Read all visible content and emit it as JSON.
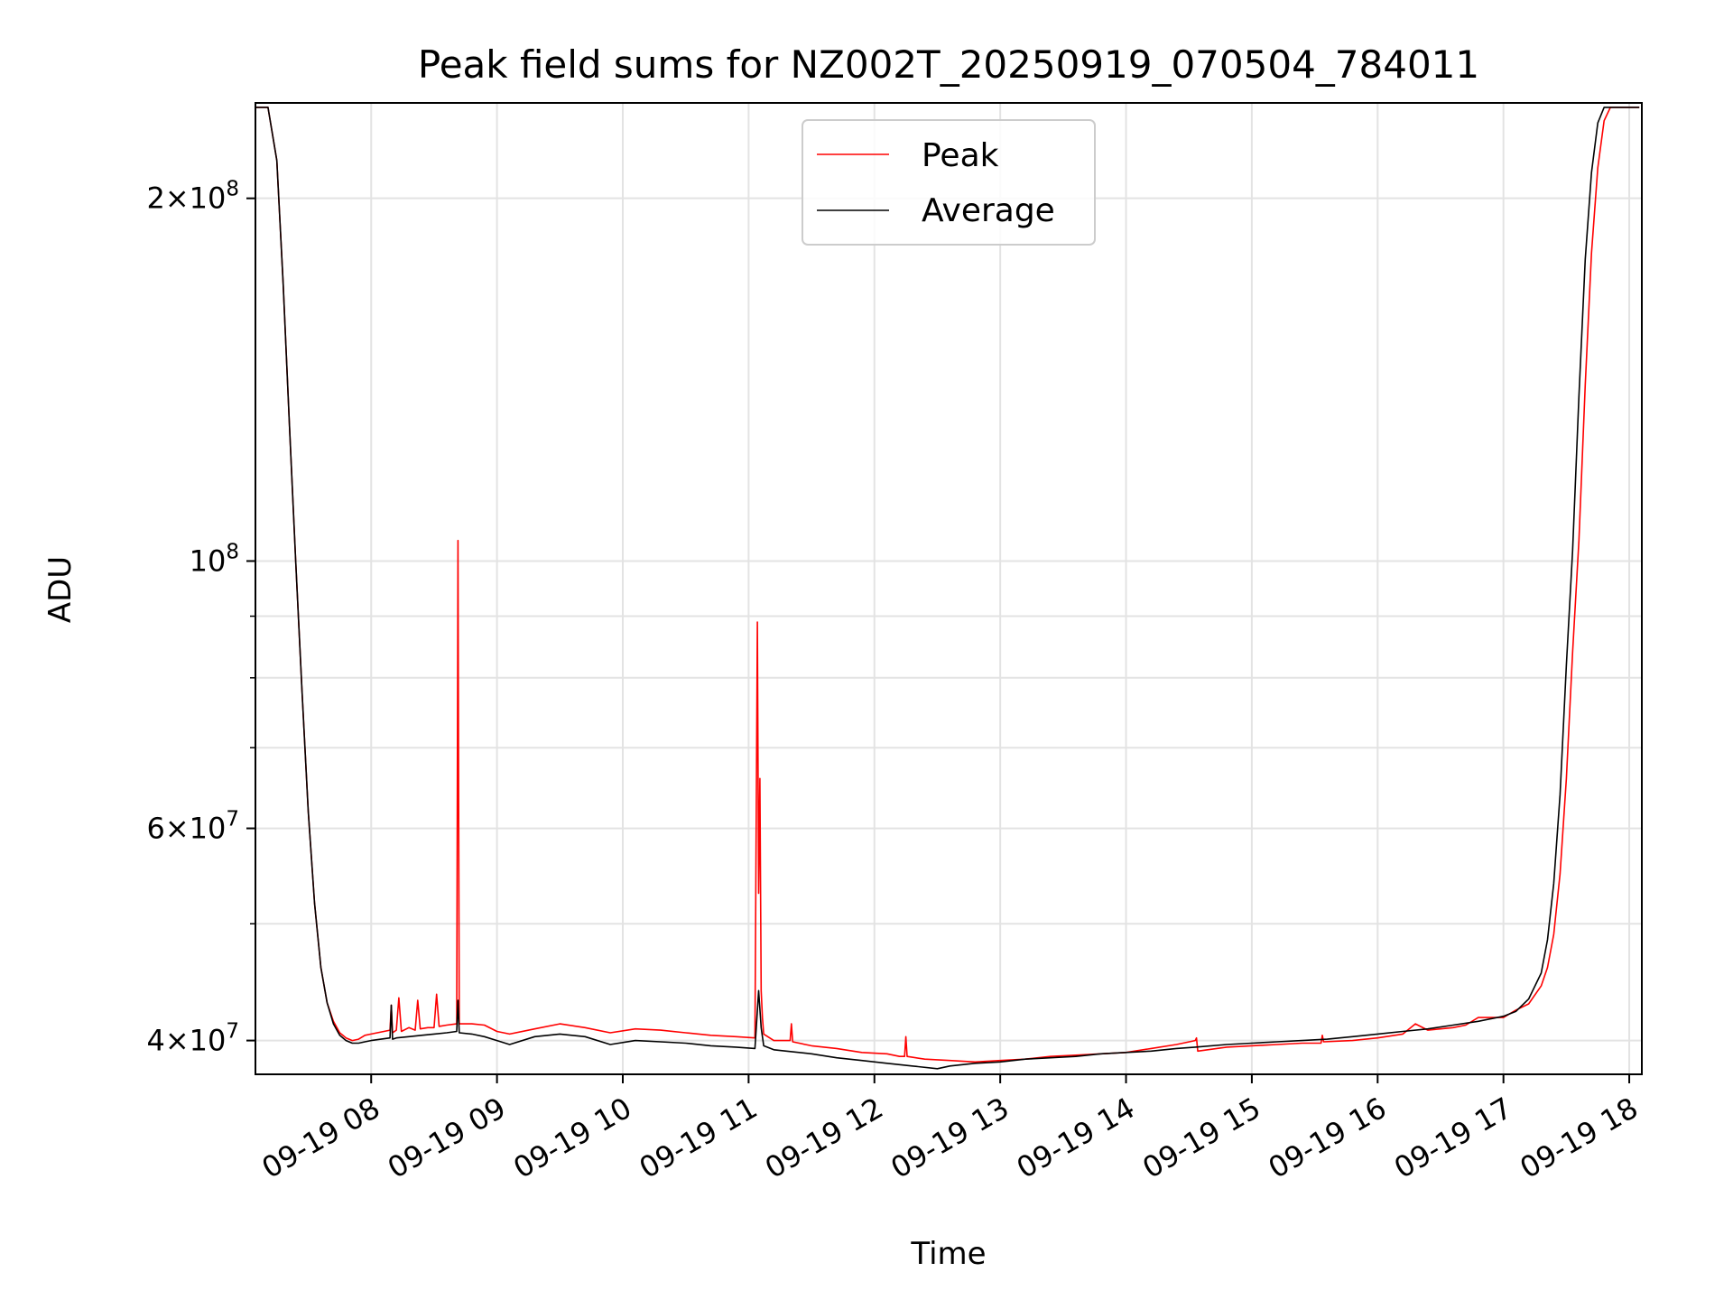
{
  "chart_data": {
    "type": "line",
    "title": "Peak field sums for NZ002T_20250919_070504_784011",
    "xlabel": "Time",
    "ylabel": "ADU",
    "yscale": "log",
    "ylim": [
      37500000,
      240000000
    ],
    "xlim_hours": [
      7.08,
      18.1
    ],
    "x_tick_hours": [
      8,
      9,
      10,
      11,
      12,
      13,
      14,
      15,
      16,
      17,
      18
    ],
    "x_tick_labels": [
      "09-19 08",
      "09-19 09",
      "09-19 10",
      "09-19 11",
      "09-19 12",
      "09-19 13",
      "09-19 14",
      "09-19 15",
      "09-19 16",
      "09-19 17",
      "09-19 18"
    ],
    "y_major_ticks": [
      {
        "value": 40000000,
        "mantissa": "4",
        "exp": "7"
      },
      {
        "value": 60000000,
        "mantissa": "6",
        "exp": "7"
      },
      {
        "value": 100000000,
        "mantissa": "",
        "exp": "8"
      },
      {
        "value": 200000000,
        "mantissa": "2",
        "exp": "8"
      }
    ],
    "y_minor_ticks": [
      50000000,
      70000000,
      80000000,
      90000000
    ],
    "grid": true,
    "legend_position": "top-center",
    "series": [
      {
        "name": "Peak",
        "color": "#ff0000",
        "x_hours": [
          7.08,
          7.18,
          7.25,
          7.3,
          7.35,
          7.4,
          7.45,
          7.5,
          7.55,
          7.6,
          7.65,
          7.7,
          7.75,
          7.8,
          7.85,
          7.9,
          7.95,
          8.0,
          8.15,
          8.16,
          8.17,
          8.2,
          8.22,
          8.24,
          8.3,
          8.35,
          8.37,
          8.39,
          8.45,
          8.5,
          8.52,
          8.54,
          8.6,
          8.68,
          8.69,
          8.7,
          8.8,
          8.9,
          9.0,
          9.1,
          9.3,
          9.5,
          9.7,
          9.9,
          10.1,
          10.3,
          10.5,
          10.7,
          10.9,
          11.05,
          11.07,
          11.08,
          11.09,
          11.1,
          11.11,
          11.12,
          11.2,
          11.3,
          11.33,
          11.34,
          11.35,
          11.5,
          11.7,
          11.9,
          12.1,
          12.2,
          12.24,
          12.25,
          12.26,
          12.4,
          12.6,
          12.8,
          13.0,
          13.2,
          13.4,
          13.6,
          13.8,
          14.0,
          14.2,
          14.4,
          14.55,
          14.56,
          14.57,
          14.8,
          15.0,
          15.2,
          15.4,
          15.55,
          15.56,
          15.57,
          15.8,
          16.0,
          16.2,
          16.3,
          16.4,
          16.6,
          16.7,
          16.8,
          17.0,
          17.1,
          17.2,
          17.3,
          17.35,
          17.4,
          17.45,
          17.5,
          17.55,
          17.6,
          17.65,
          17.7,
          17.75,
          17.8,
          17.85,
          17.9,
          18.08
        ],
        "values": [
          238000000,
          238000000,
          215000000,
          170000000,
          130000000,
          100000000,
          78000000,
          62000000,
          52000000,
          46000000,
          43000000,
          41500000,
          40600000,
          40200000,
          40000000,
          40100000,
          40400000,
          40500000,
          40800000,
          42800000,
          40600000,
          40800000,
          43400000,
          40700000,
          41000000,
          40800000,
          43200000,
          40900000,
          41000000,
          41000000,
          43700000,
          41100000,
          41200000,
          41300000,
          104000000,
          41300000,
          41300000,
          41200000,
          40700000,
          40500000,
          40900000,
          41300000,
          41000000,
          40600000,
          40900000,
          40800000,
          40600000,
          40400000,
          40300000,
          40200000,
          89000000,
          53000000,
          66000000,
          44000000,
          41800000,
          40500000,
          40000000,
          40000000,
          40000000,
          41300000,
          39900000,
          39600000,
          39400000,
          39100000,
          39000000,
          38800000,
          38800000,
          40300000,
          38800000,
          38600000,
          38500000,
          38400000,
          38500000,
          38600000,
          38800000,
          38900000,
          39000000,
          39100000,
          39400000,
          39700000,
          40000000,
          40200000,
          39200000,
          39500000,
          39600000,
          39700000,
          39800000,
          39800000,
          40400000,
          39900000,
          40000000,
          40200000,
          40500000,
          41300000,
          40800000,
          41000000,
          41200000,
          41800000,
          41800000,
          42400000,
          42900000,
          44400000,
          46000000,
          49000000,
          55000000,
          66000000,
          84000000,
          104000000,
          140000000,
          180000000,
          212000000,
          232000000,
          238000000,
          238000000,
          238000000
        ]
      },
      {
        "name": "Average",
        "color": "#000000",
        "x_hours": [
          7.08,
          7.18,
          7.25,
          7.3,
          7.35,
          7.4,
          7.45,
          7.5,
          7.55,
          7.6,
          7.65,
          7.7,
          7.75,
          7.8,
          7.85,
          7.9,
          7.95,
          8.0,
          8.15,
          8.16,
          8.17,
          8.2,
          8.3,
          8.4,
          8.5,
          8.6,
          8.68,
          8.69,
          8.7,
          8.8,
          8.9,
          9.0,
          9.1,
          9.3,
          9.5,
          9.7,
          9.9,
          10.1,
          10.3,
          10.5,
          10.7,
          10.9,
          11.05,
          11.08,
          11.1,
          11.12,
          11.2,
          11.3,
          11.5,
          11.7,
          11.9,
          12.1,
          12.3,
          12.5,
          12.6,
          12.8,
          13.0,
          13.2,
          13.4,
          13.6,
          13.8,
          14.0,
          14.2,
          14.4,
          14.55,
          14.8,
          15.0,
          15.2,
          15.4,
          15.6,
          15.8,
          16.0,
          16.2,
          16.4,
          16.6,
          16.8,
          17.0,
          17.1,
          17.2,
          17.3,
          17.35,
          17.4,
          17.45,
          17.5,
          17.55,
          17.6,
          17.65,
          17.7,
          17.75,
          17.8,
          17.85,
          17.9,
          18.08
        ],
        "values": [
          238000000,
          238000000,
          215000000,
          170000000,
          130000000,
          100000000,
          78000000,
          62000000,
          52000000,
          46000000,
          43000000,
          41300000,
          40400000,
          40000000,
          39800000,
          39800000,
          39900000,
          40000000,
          40200000,
          42800000,
          40100000,
          40200000,
          40300000,
          40400000,
          40500000,
          40600000,
          40700000,
          43200000,
          40600000,
          40500000,
          40300000,
          40000000,
          39700000,
          40300000,
          40500000,
          40300000,
          39700000,
          40000000,
          39900000,
          39800000,
          39600000,
          39500000,
          39400000,
          44000000,
          41000000,
          39600000,
          39300000,
          39200000,
          39000000,
          38700000,
          38500000,
          38300000,
          38100000,
          37900000,
          38100000,
          38300000,
          38400000,
          38600000,
          38700000,
          38800000,
          39000000,
          39100000,
          39200000,
          39400000,
          39500000,
          39700000,
          39800000,
          39900000,
          40000000,
          40100000,
          40300000,
          40500000,
          40700000,
          40900000,
          41200000,
          41500000,
          41900000,
          42300000,
          43300000,
          45500000,
          48500000,
          54000000,
          64000000,
          82000000,
          102000000,
          137000000,
          178000000,
          210000000,
          231000000,
          238000000,
          238000000,
          238000000,
          238000000
        ]
      }
    ]
  }
}
